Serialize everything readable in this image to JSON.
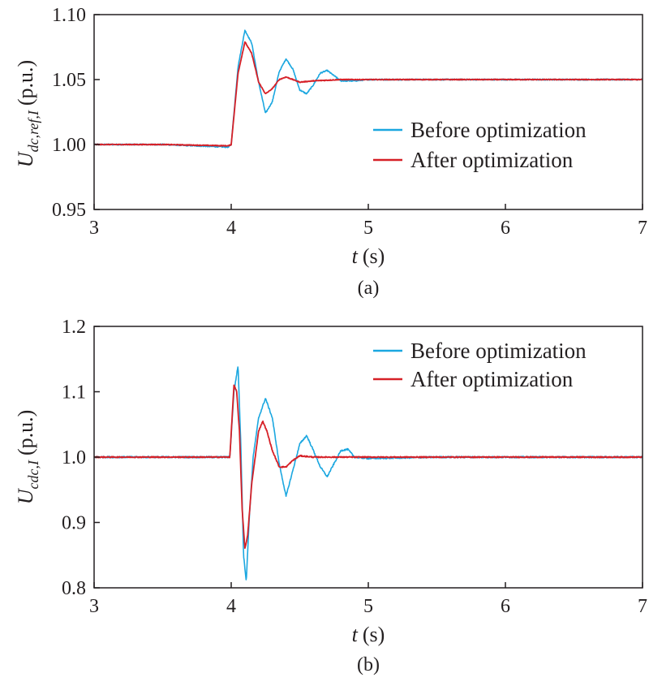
{
  "chart_data": [
    {
      "type": "line",
      "caption": "(a)",
      "xlabel_var": "t",
      "xlabel_unit": "(s)",
      "ylabel_var": "U",
      "ylabel_sub": "dc,ref,I",
      "ylabel_unit": "(p.u.)",
      "xlim": [
        3,
        7
      ],
      "ylim": [
        0.95,
        1.1
      ],
      "x_ticks": [
        3,
        4,
        5,
        6,
        7
      ],
      "y_ticks": [
        "0.95",
        "1.00",
        "1.05",
        "1.10"
      ],
      "y_tick_values": [
        0.95,
        1.0,
        1.05,
        1.1
      ],
      "legend_position": "right",
      "grid": false,
      "series": [
        {
          "name": "Before optimization",
          "color": "#1ba7e0",
          "x": [
            3.0,
            3.5,
            3.98,
            4.0,
            4.05,
            4.1,
            4.15,
            4.2,
            4.25,
            4.3,
            4.35,
            4.4,
            4.45,
            4.5,
            4.55,
            4.6,
            4.65,
            4.7,
            4.75,
            4.8,
            4.9,
            5.0,
            5.5,
            6.0,
            6.5,
            7.0
          ],
          "y": [
            1.0,
            1.0,
            0.998,
            1.0,
            1.06,
            1.088,
            1.078,
            1.048,
            1.024,
            1.033,
            1.056,
            1.066,
            1.058,
            1.042,
            1.039,
            1.046,
            1.055,
            1.057,
            1.053,
            1.049,
            1.049,
            1.05,
            1.05,
            1.05,
            1.05,
            1.05
          ]
        },
        {
          "name": "After optimization",
          "color": "#d62027",
          "x": [
            3.0,
            3.5,
            3.98,
            4.0,
            4.05,
            4.1,
            4.15,
            4.2,
            4.25,
            4.3,
            4.35,
            4.4,
            4.45,
            4.5,
            4.6,
            4.8,
            5.0,
            5.5,
            6.0,
            6.5,
            7.0
          ],
          "y": [
            1.0,
            1.0,
            0.999,
            1.0,
            1.055,
            1.079,
            1.07,
            1.048,
            1.039,
            1.043,
            1.05,
            1.052,
            1.05,
            1.048,
            1.049,
            1.05,
            1.05,
            1.05,
            1.05,
            1.05,
            1.05
          ]
        }
      ]
    },
    {
      "type": "line",
      "caption": "(b)",
      "xlabel_var": "t",
      "xlabel_unit": "(s)",
      "ylabel_var": "U",
      "ylabel_sub": "cdc,I",
      "ylabel_unit": "(p.u.)",
      "xlim": [
        3,
        7
      ],
      "ylim": [
        0.8,
        1.2
      ],
      "x_ticks": [
        3,
        4,
        5,
        6,
        7
      ],
      "y_ticks": [
        "0.8",
        "0.9",
        "1.0",
        "1.1",
        "1.2"
      ],
      "y_tick_values": [
        0.8,
        0.9,
        1.0,
        1.1,
        1.2
      ],
      "legend_position": "top-right",
      "grid": false,
      "series": [
        {
          "name": "Before optimization",
          "color": "#1ba7e0",
          "x": [
            3.0,
            3.5,
            3.99,
            4.02,
            4.05,
            4.07,
            4.09,
            4.11,
            4.13,
            4.16,
            4.2,
            4.25,
            4.3,
            4.35,
            4.4,
            4.45,
            4.5,
            4.55,
            4.6,
            4.65,
            4.7,
            4.75,
            4.8,
            4.85,
            4.9,
            5.0,
            5.5,
            5.8,
            6.0,
            6.5,
            7.0
          ],
          "y": [
            1.0,
            1.0,
            1.0,
            1.1,
            1.14,
            1.02,
            0.85,
            0.81,
            0.9,
            1.0,
            1.06,
            1.09,
            1.06,
            0.99,
            0.94,
            0.98,
            1.02,
            1.033,
            1.01,
            0.985,
            0.97,
            0.99,
            1.01,
            1.012,
            1.0,
            0.998,
            1.0,
            1.0,
            1.0,
            1.0,
            1.0
          ]
        },
        {
          "name": "After optimization",
          "color": "#d62027",
          "x": [
            3.0,
            3.5,
            3.99,
            4.02,
            4.04,
            4.06,
            4.08,
            4.1,
            4.12,
            4.15,
            4.2,
            4.23,
            4.26,
            4.3,
            4.35,
            4.4,
            4.45,
            4.5,
            4.6,
            4.8,
            5.0,
            5.5,
            6.0,
            6.5,
            7.0
          ],
          "y": [
            1.0,
            1.0,
            1.0,
            1.11,
            1.1,
            1.04,
            0.92,
            0.86,
            0.88,
            0.96,
            1.04,
            1.055,
            1.04,
            1.01,
            0.985,
            0.985,
            0.995,
            1.002,
            1.0,
            1.0,
            1.0,
            1.0,
            1.0,
            1.0,
            1.0
          ]
        }
      ]
    }
  ]
}
